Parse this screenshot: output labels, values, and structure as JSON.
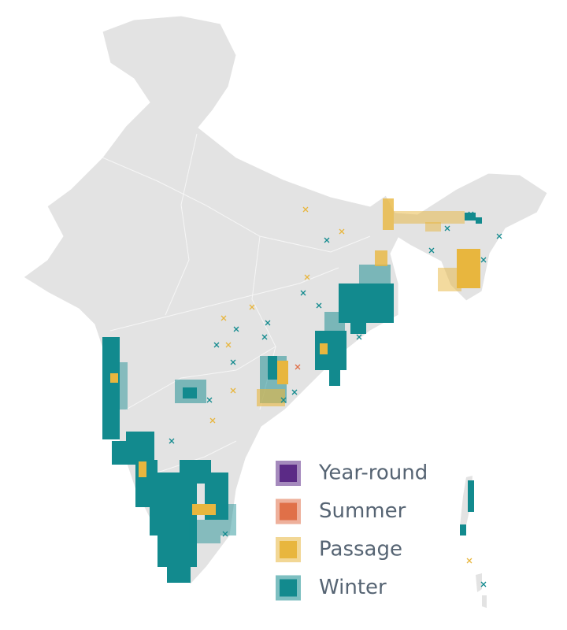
{
  "legend": {
    "items": [
      {
        "label": "Year-round",
        "color": "#5b2a86"
      },
      {
        "label": "Summer",
        "color": "#e07048"
      },
      {
        "label": "Passage",
        "color": "#e8b63e"
      },
      {
        "label": "Winter",
        "color": "#128a8e"
      }
    ]
  }
}
